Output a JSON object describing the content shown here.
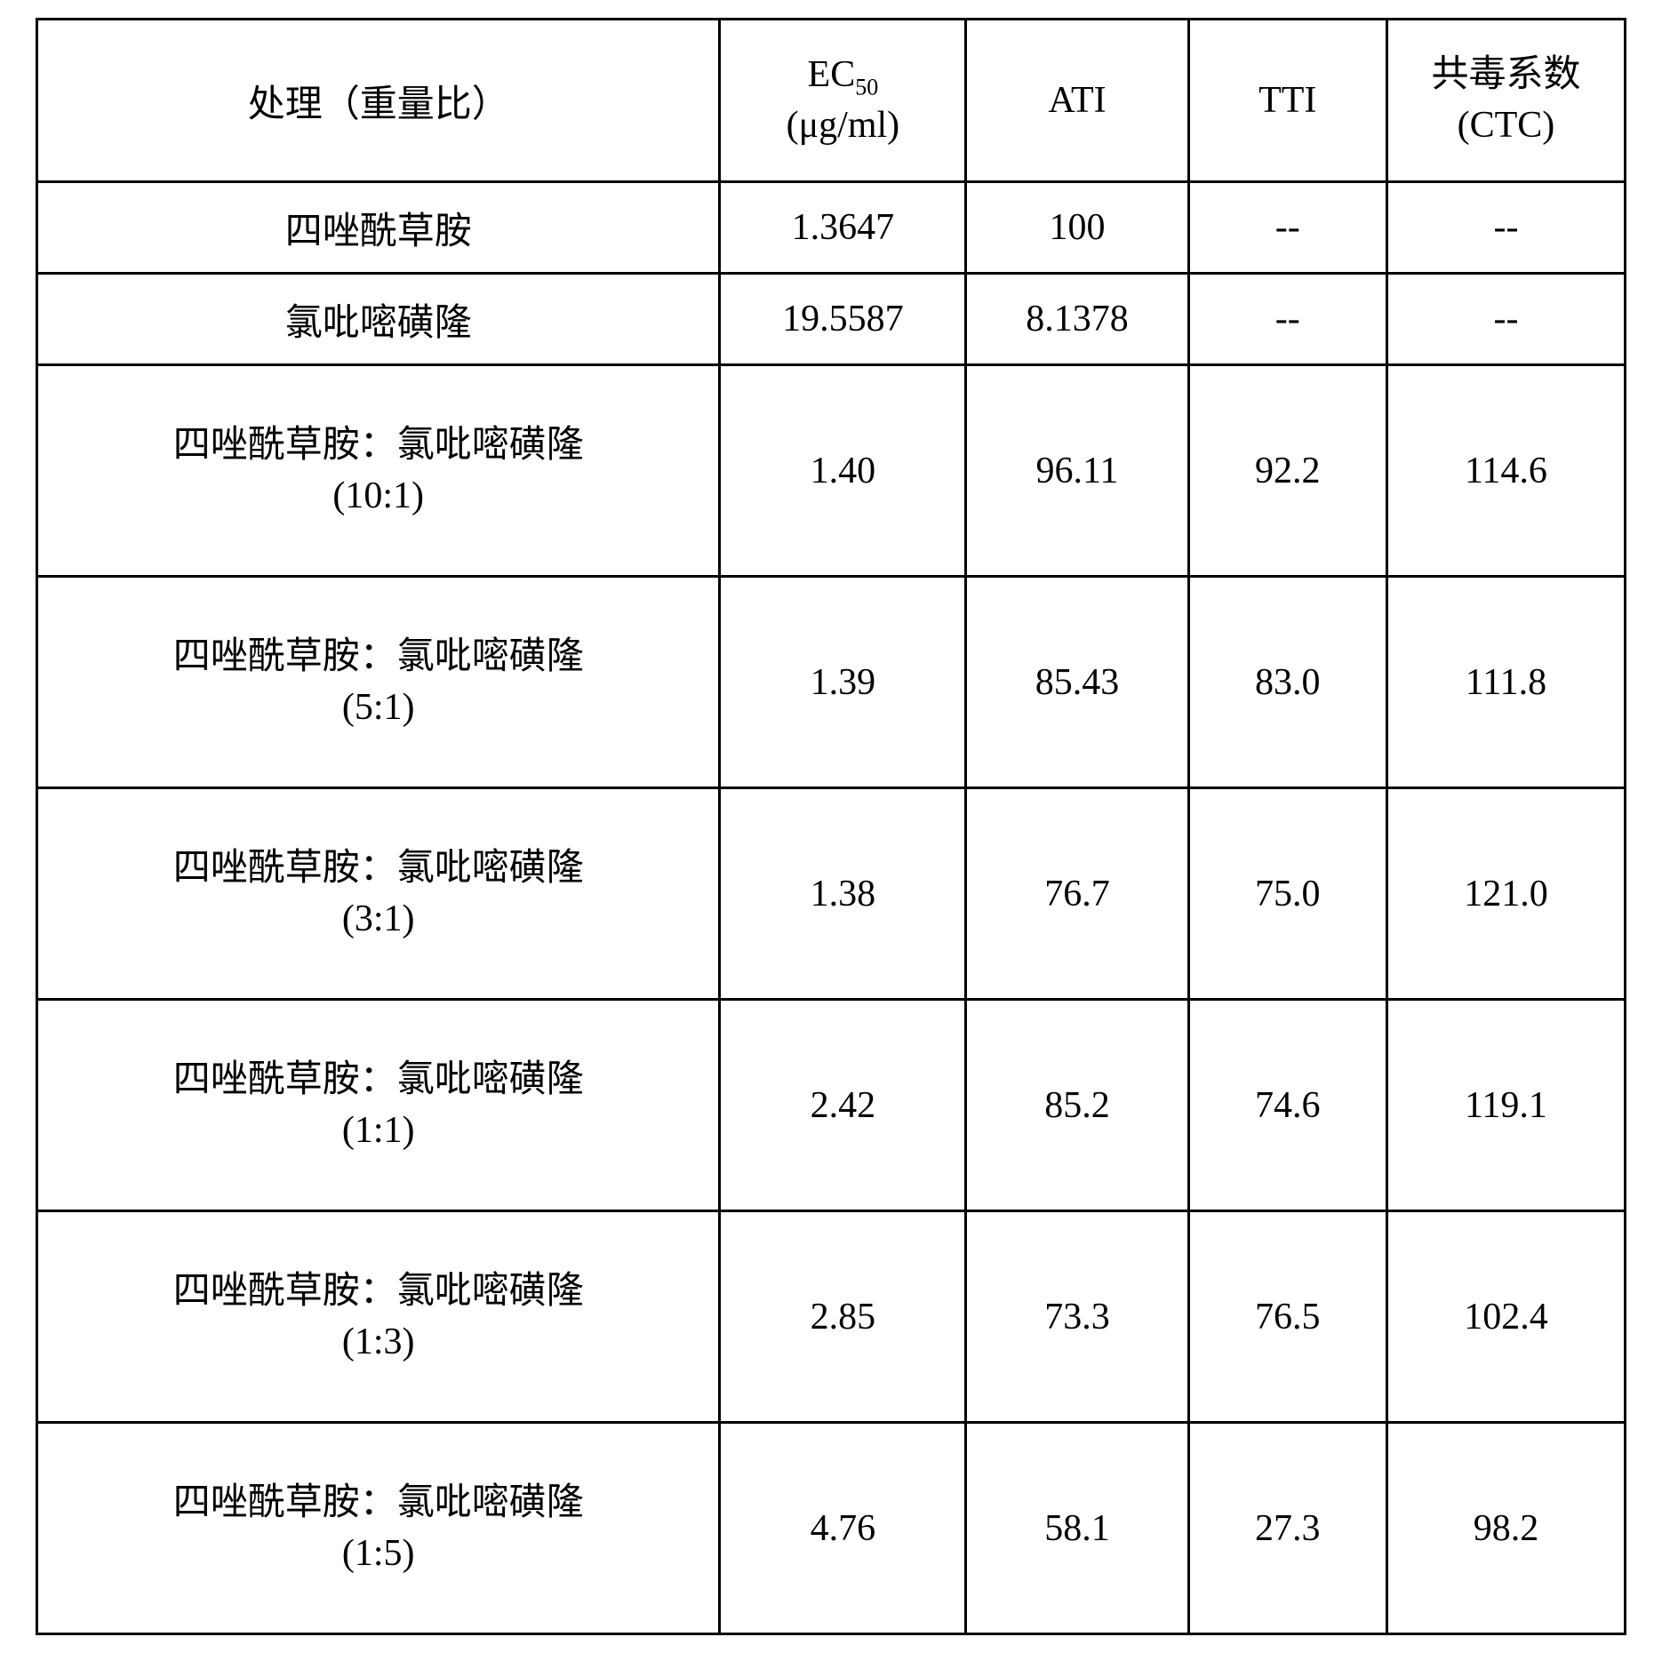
{
  "table": {
    "type": "table",
    "border_color": "#000000",
    "background_color": "#ffffff",
    "text_color": "#000000",
    "font_size_pt": 32,
    "columns": [
      {
        "key": "treatment",
        "width_pct": 43,
        "align": "center"
      },
      {
        "key": "ec50",
        "width_pct": 15.5,
        "align": "center"
      },
      {
        "key": "ati",
        "width_pct": 14,
        "align": "center"
      },
      {
        "key": "tti",
        "width_pct": 12.5,
        "align": "center"
      },
      {
        "key": "ctc",
        "width_pct": 15,
        "align": "center"
      }
    ],
    "header": {
      "treatment": "处理（重量比）",
      "ec50_line1_pre": "EC",
      "ec50_line1_sub": "50",
      "ec50_line2": "(μg/ml)",
      "ati": "ATI",
      "tti": "TTI",
      "ctc_line1": "共毒系数",
      "ctc_line2": "(CTC)"
    },
    "rows": [
      {
        "tall": false,
        "treatment_line1": "四唑酰草胺",
        "treatment_line2": "",
        "ec50": "1.3647",
        "ati": "100",
        "tti": "--",
        "ctc": "--"
      },
      {
        "tall": false,
        "treatment_line1": "氯吡嘧磺隆",
        "treatment_line2": "",
        "ec50": "19.5587",
        "ati": "8.1378",
        "tti": "--",
        "ctc": "--"
      },
      {
        "tall": true,
        "treatment_line1": "四唑酰草胺：氯吡嘧磺隆",
        "treatment_line2": "(10:1)",
        "ec50": "1.40",
        "ati": "96.11",
        "tti": "92.2",
        "ctc": "114.6"
      },
      {
        "tall": true,
        "treatment_line1": "四唑酰草胺：氯吡嘧磺隆",
        "treatment_line2": "(5:1)",
        "ec50": "1.39",
        "ati": "85.43",
        "tti": "83.0",
        "ctc": "111.8"
      },
      {
        "tall": true,
        "treatment_line1": "四唑酰草胺：氯吡嘧磺隆",
        "treatment_line2": "(3:1)",
        "ec50": "1.38",
        "ati": "76.7",
        "tti": "75.0",
        "ctc": "121.0"
      },
      {
        "tall": true,
        "treatment_line1": "四唑酰草胺：氯吡嘧磺隆",
        "treatment_line2": "(1:1)",
        "ec50": "2.42",
        "ati": "85.2",
        "tti": "74.6",
        "ctc": "119.1"
      },
      {
        "tall": true,
        "treatment_line1": "四唑酰草胺：氯吡嘧磺隆",
        "treatment_line2": "(1:3)",
        "ec50": "2.85",
        "ati": "73.3",
        "tti": "76.5",
        "ctc": "102.4"
      },
      {
        "tall": true,
        "treatment_line1": "四唑酰草胺：氯吡嘧磺隆",
        "treatment_line2": "(1:5)",
        "ec50": "4.76",
        "ati": "58.1",
        "tti": "27.3",
        "ctc": "98.2"
      }
    ]
  }
}
